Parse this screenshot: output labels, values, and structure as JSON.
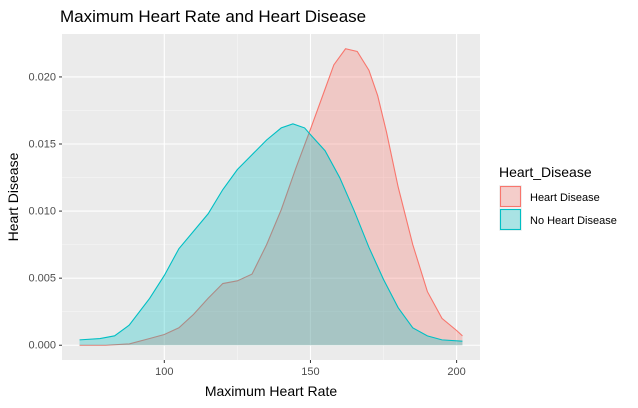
{
  "chart_data": {
    "type": "area",
    "title": "Maximum Heart Rate and Heart Disease",
    "xlabel": "Maximum Heart Rate",
    "ylabel": "Heart Disease",
    "xlim": [
      65,
      208
    ],
    "ylim": [
      -0.0011,
      0.0232
    ],
    "xticks": [
      100,
      150,
      200
    ],
    "yticks": [
      0.0,
      0.005,
      0.01,
      0.015,
      0.02
    ],
    "ytick_labels": [
      "0.000",
      "0.005",
      "0.010",
      "0.015",
      "0.020"
    ],
    "grid": true,
    "legend": {
      "title": "Heart_Disease",
      "position": "right",
      "entries": [
        "Heart Disease",
        "No Heart Disease"
      ]
    },
    "series": [
      {
        "name": "Heart Disease",
        "stroke": "#F8766D",
        "fill": "#F8766D",
        "points": [
          [
            71,
            0.0
          ],
          [
            80,
            0.0
          ],
          [
            88,
            0.0001
          ],
          [
            95,
            0.0005
          ],
          [
            100,
            0.0008
          ],
          [
            105,
            0.0013
          ],
          [
            110,
            0.0023
          ],
          [
            115,
            0.0035
          ],
          [
            120,
            0.0046
          ],
          [
            125,
            0.0048
          ],
          [
            130,
            0.0053
          ],
          [
            135,
            0.0075
          ],
          [
            140,
            0.0101
          ],
          [
            145,
            0.0132
          ],
          [
            150,
            0.0161
          ],
          [
            155,
            0.0191
          ],
          [
            158,
            0.0209
          ],
          [
            162,
            0.0221
          ],
          [
            166,
            0.0219
          ],
          [
            170,
            0.0205
          ],
          [
            173,
            0.0186
          ],
          [
            176,
            0.0159
          ],
          [
            180,
            0.0118
          ],
          [
            185,
            0.0075
          ],
          [
            190,
            0.004
          ],
          [
            195,
            0.002
          ],
          [
            200,
            0.0011
          ],
          [
            202,
            0.0007
          ]
        ]
      },
      {
        "name": "No Heart Disease",
        "stroke": "#00BFC4",
        "fill": "#00BFC4",
        "points": [
          [
            71,
            0.0004
          ],
          [
            78,
            0.0005
          ],
          [
            83,
            0.0007
          ],
          [
            88,
            0.0015
          ],
          [
            95,
            0.0035
          ],
          [
            100,
            0.0052
          ],
          [
            105,
            0.0072
          ],
          [
            110,
            0.0085
          ],
          [
            115,
            0.0098
          ],
          [
            120,
            0.0116
          ],
          [
            125,
            0.0131
          ],
          [
            130,
            0.0142
          ],
          [
            135,
            0.0153
          ],
          [
            140,
            0.0162
          ],
          [
            144,
            0.0165
          ],
          [
            148,
            0.0162
          ],
          [
            150,
            0.0157
          ],
          [
            155,
            0.0145
          ],
          [
            160,
            0.0125
          ],
          [
            165,
            0.01
          ],
          [
            170,
            0.0073
          ],
          [
            175,
            0.0049
          ],
          [
            180,
            0.0028
          ],
          [
            185,
            0.0013
          ],
          [
            190,
            0.0007
          ],
          [
            195,
            0.0004
          ],
          [
            202,
            0.0003
          ]
        ]
      }
    ]
  }
}
